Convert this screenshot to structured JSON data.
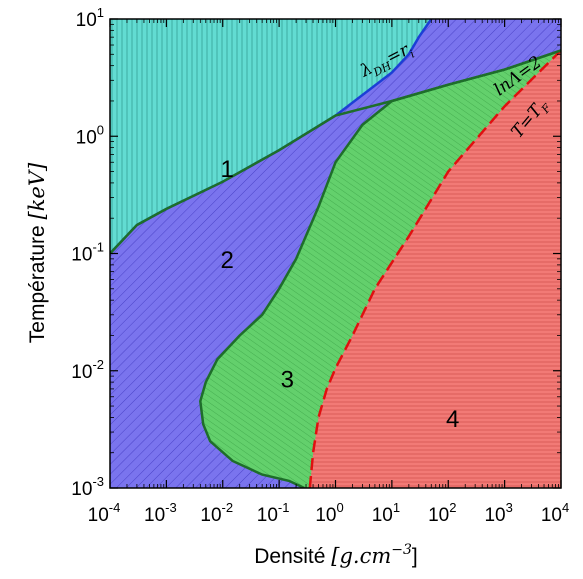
{
  "chart_data": {
    "type": "area",
    "xlabel": {
      "text": "Densité ",
      "unit": "[g.cm",
      "unit_exp": "−3",
      "unit_close": "]"
    },
    "ylabel": {
      "text": "Température ",
      "unit": "[keV]"
    },
    "xscale": "log",
    "yscale": "log",
    "xlim": [
      0.0001,
      10000
    ],
    "ylim": [
      0.001,
      10
    ],
    "x_ticks": [
      {
        "value": 0.0001,
        "base": "10",
        "exp": "-4"
      },
      {
        "value": 0.001,
        "base": "10",
        "exp": "-3"
      },
      {
        "value": 0.01,
        "base": "10",
        "exp": "-2"
      },
      {
        "value": 0.1,
        "base": "10",
        "exp": "-1"
      },
      {
        "value": 1,
        "base": "10",
        "exp": "0"
      },
      {
        "value": 10,
        "base": "10",
        "exp": "1"
      },
      {
        "value": 100,
        "base": "10",
        "exp": "2"
      },
      {
        "value": 1000,
        "base": "10",
        "exp": "3"
      },
      {
        "value": 10000,
        "base": "10",
        "exp": "4"
      }
    ],
    "y_ticks": [
      {
        "value": 0.001,
        "base": "10",
        "exp": "-3"
      },
      {
        "value": 0.01,
        "base": "10",
        "exp": "-2"
      },
      {
        "value": 0.1,
        "base": "10",
        "exp": "-1"
      },
      {
        "value": 1,
        "base": "10",
        "exp": "0"
      },
      {
        "value": 10,
        "base": "10",
        "exp": "1"
      }
    ],
    "curves": [
      {
        "label": {
          "main": "λ",
          "sub": "DH",
          "rest": "=r",
          "sub2": "i"
        },
        "color": "#1c3fd6",
        "dash": "solid",
        "points": [
          [
            0.0001,
            0.1
          ],
          [
            0.0003,
            0.175
          ],
          [
            0.001,
            0.24
          ],
          [
            0.01,
            0.41
          ],
          [
            0.1,
            0.76
          ],
          [
            1,
            1.5
          ],
          [
            10,
            3.5
          ],
          [
            20,
            5
          ],
          [
            30,
            7
          ],
          [
            50,
            10
          ]
        ]
      },
      {
        "label": {
          "main": "lnΛ",
          "rest": "=2"
        },
        "color": "#1e6e2a",
        "dash": "solid",
        "points": [
          [
            0.0001,
            0.1
          ],
          [
            0.0003,
            0.175
          ],
          [
            0.001,
            0.24
          ],
          [
            0.01,
            0.41
          ],
          [
            0.1,
            0.76
          ],
          [
            1,
            1.5
          ],
          [
            10,
            2.0
          ],
          [
            100,
            2.75
          ],
          [
            1000,
            3.7
          ],
          [
            10000,
            5.4
          ]
        ]
      },
      {
        "label": {
          "main": "T",
          "rest": "=T",
          "sub2": "F"
        },
        "color": "#e01010",
        "dash": "dashed",
        "points": [
          [
            0.35,
            0.001
          ],
          [
            0.4,
            0.002
          ],
          [
            0.5,
            0.004
          ],
          [
            0.7,
            0.007
          ],
          [
            1,
            0.0105
          ],
          [
            2,
            0.02
          ],
          [
            5,
            0.05
          ],
          [
            20,
            0.14
          ],
          [
            100,
            0.5
          ],
          [
            1000,
            1.8
          ],
          [
            10000,
            5.4
          ]
        ]
      }
    ],
    "regions": [
      {
        "label": "1",
        "color": "#62dcd2",
        "hatch": "vertical",
        "label_at": [
          0.012,
          0.45
        ]
      },
      {
        "label": "2",
        "color": "#7a74ee",
        "hatch": "diagonal",
        "label_at": [
          0.012,
          0.075
        ]
      },
      {
        "label": "3",
        "color": "#63d06c",
        "hatch": "diagonal-fine",
        "label_at": [
          0.14,
          0.0072
        ]
      },
      {
        "label": "4",
        "color": "#f27a76",
        "hatch": "horizontal",
        "label_at": [
          120,
          0.0033
        ]
      }
    ],
    "region_boundaries": {
      "plasma_lower": [
        [
          0.0001,
          0.1
        ],
        [
          0.0003,
          0.175
        ],
        [
          0.001,
          0.24
        ],
        [
          0.01,
          0.41
        ],
        [
          0.1,
          0.76
        ],
        [
          1,
          1.5
        ],
        [
          10,
          3.5
        ],
        [
          20,
          5
        ],
        [
          30,
          7
        ],
        [
          50,
          10
        ]
      ],
      "plasma3_outer": [
        [
          10000,
          5.4
        ],
        [
          1000,
          3.7
        ],
        [
          100,
          2.75
        ],
        [
          10,
          2.0
        ],
        [
          3,
          1.25
        ],
        [
          1,
          0.6
        ],
        [
          0.5,
          0.25
        ],
        [
          0.2,
          0.09
        ],
        [
          0.1,
          0.05
        ],
        [
          0.05,
          0.03
        ],
        [
          0.02,
          0.02
        ],
        [
          0.008,
          0.0125
        ],
        [
          0.005,
          0.008
        ],
        [
          0.004,
          0.0055
        ],
        [
          0.0045,
          0.0035
        ],
        [
          0.006,
          0.0025
        ],
        [
          0.015,
          0.0017
        ],
        [
          0.05,
          0.0013
        ],
        [
          0.15,
          0.00115
        ],
        [
          0.28,
          0.001
        ]
      ]
    }
  }
}
